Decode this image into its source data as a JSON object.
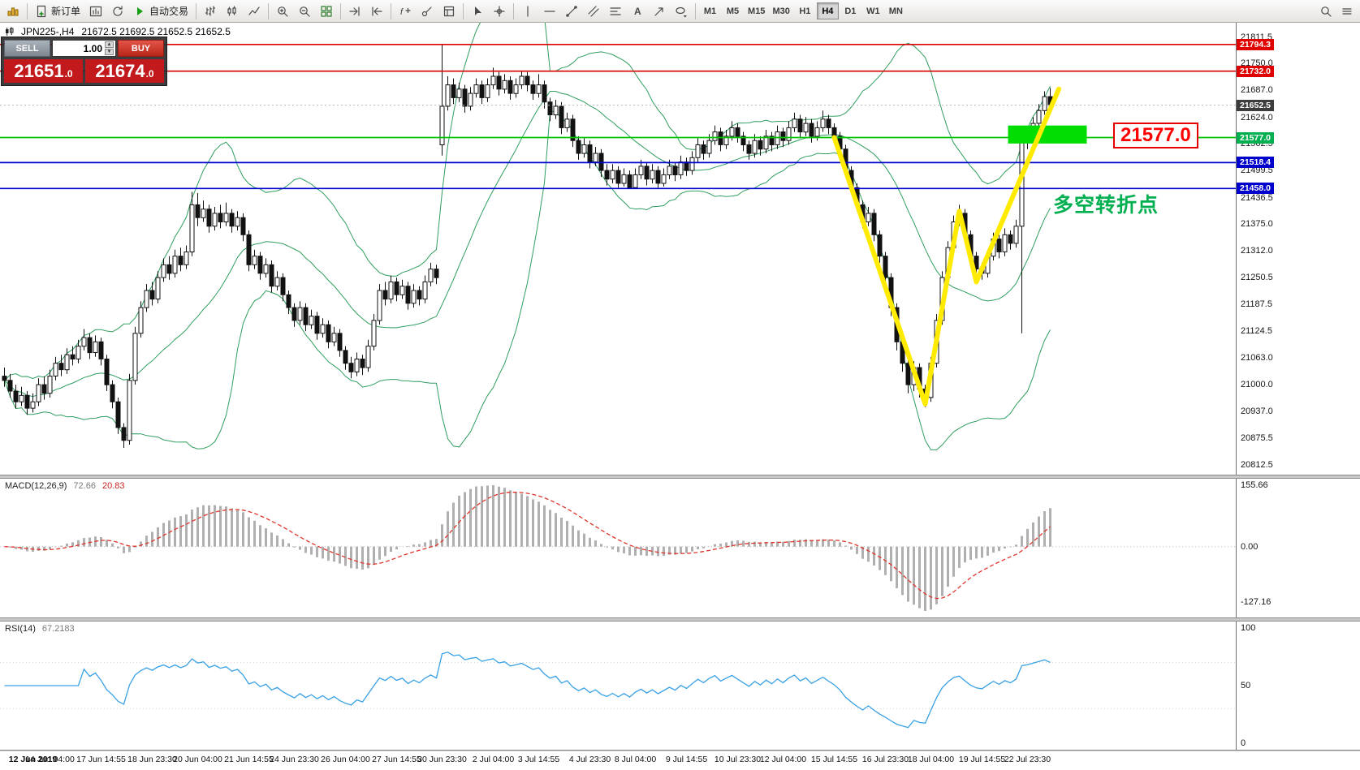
{
  "toolbar": {
    "new_order_label": "新订单",
    "autotrade_label": "自动交易",
    "timeframes": [
      "M1",
      "M5",
      "M15",
      "M30",
      "H1",
      "H4",
      "D1",
      "W1",
      "MN"
    ],
    "active_timeframe": "H4"
  },
  "chart": {
    "symbol_period": "JPN225-,H4",
    "ohlc": "21672.5 21692.5 21652.5 21652.5"
  },
  "trade_panel": {
    "sell_label": "SELL",
    "buy_label": "BUY",
    "volume": "1.00",
    "sell_price_main": "21651",
    "sell_price_frac": ".0",
    "buy_price_main": "21674",
    "buy_price_frac": ".0"
  },
  "annotations": {
    "support_price": "21577.0",
    "turning_point": "多空转折点"
  },
  "chart_data": {
    "type": "candlestick",
    "symbol": "JPN225-",
    "timeframe": "H4",
    "current_ohlc": {
      "open": 21672.5,
      "high": 21692.5,
      "low": 21652.5,
      "close": 21652.5
    },
    "current_price": 21652.5,
    "price_axis": {
      "range": [
        20790,
        21845
      ],
      "ticks": [
        21811.5,
        21750.0,
        21687.0,
        21624.0,
        21562.5,
        21499.5,
        21436.5,
        21375.0,
        21312.0,
        21250.5,
        21187.5,
        21124.5,
        21063.0,
        21000.0,
        20937.0,
        20875.5,
        20812.5
      ]
    },
    "axis_tags": [
      {
        "price": 21794.3,
        "label": "21794.3",
        "color": "#e00000"
      },
      {
        "price": 21732.0,
        "label": "21732.0",
        "color": "#e00000"
      },
      {
        "price": 21652.5,
        "label": "21652.5",
        "color": "#3c3c3c"
      },
      {
        "price": 21577.0,
        "label": "21577.0",
        "color": "#00b050"
      },
      {
        "price": 21518.4,
        "label": "21518.4",
        "color": "#0000cd"
      },
      {
        "price": 21458.0,
        "label": "21458.0",
        "color": "#0000cd"
      }
    ],
    "hlines": [
      {
        "price": 21794.3,
        "color": "#d90000"
      },
      {
        "price": 21732.0,
        "color": "#d90000"
      },
      {
        "price": 21577.0,
        "color": "#00c400"
      },
      {
        "price": 21518.4,
        "color": "#0000cd"
      },
      {
        "price": 21458.0,
        "color": "#0000cd"
      }
    ],
    "bollinger": {
      "period": 20,
      "deviation": 2,
      "color": "#2f9e5f"
    },
    "macd": {
      "label": "MACD(12,26,9)",
      "value_main": "72.66",
      "value_signal": "20.83",
      "fast": 12,
      "slow": 26,
      "signal_period": 9,
      "axis": [
        155.66,
        0,
        -127.16
      ],
      "bar_color": "#b0b0b0",
      "signal_color": "#e0352b"
    },
    "rsi": {
      "label": "RSI(14)",
      "value": "67.2183",
      "period": 14,
      "axis": [
        100,
        50,
        0
      ],
      "line_color": "#38a1e5",
      "levels": [
        70,
        30
      ]
    },
    "drawings": {
      "zigzag": {
        "color": "#ffeb00",
        "points": [
          [
            146,
            21577
          ],
          [
            162,
            20955
          ],
          [
            168,
            21405
          ],
          [
            171,
            21240
          ],
          [
            185.5,
            21690
          ]
        ]
      },
      "highlight_rect": {
        "from_index": 177,
        "to_index": 190,
        "price_top": 21605,
        "price_bottom": 21563,
        "color": "#00dd00"
      }
    },
    "candle_colors": {
      "bull": "#ffffff",
      "bear": "#111111",
      "outline": "#111111"
    },
    "time_labels": [
      {
        "i": 5,
        "t": "12 Jun 2019"
      },
      {
        "i": 8,
        "t": "14 Jun 04:00"
      },
      {
        "i": 17,
        "t": "17 Jun 14:55"
      },
      {
        "i": 26,
        "t": "18 Jun 23:30"
      },
      {
        "i": 34,
        "t": "20 Jun 04:00"
      },
      {
        "i": 43,
        "t": "21 Jun 14:55"
      },
      {
        "i": 51,
        "t": "24 Jun 23:30"
      },
      {
        "i": 60,
        "t": "26 Jun 04:00"
      },
      {
        "i": 69,
        "t": "27 Jun 14:55"
      },
      {
        "i": 77,
        "t": "30 Jun 23:30"
      },
      {
        "i": 86,
        "t": "2 Jul 04:00"
      },
      {
        "i": 94,
        "t": "3 Jul 14:55"
      },
      {
        "i": 103,
        "t": "4 Jul 23:30"
      },
      {
        "i": 111,
        "t": "8 Jul 04:00"
      },
      {
        "i": 120,
        "t": "9 Jul 14:55"
      },
      {
        "i": 129,
        "t": "10 Jul 23:30"
      },
      {
        "i": 137,
        "t": "12 Jul 04:00"
      },
      {
        "i": 146,
        "t": "15 Jul 14:55"
      },
      {
        "i": 155,
        "t": "16 Jul 23:30"
      },
      {
        "i": 163,
        "t": "18 Jul 04:00"
      },
      {
        "i": 172,
        "t": "19 Jul 14:55"
      },
      {
        "i": 180,
        "t": "22 Jul 23:30"
      }
    ],
    "candles": [
      [
        21020,
        21040,
        20995,
        21010
      ],
      [
        21010,
        21025,
        20970,
        20985
      ],
      [
        20985,
        21000,
        20945,
        20960
      ],
      [
        20960,
        20995,
        20950,
        20975
      ],
      [
        20975,
        20985,
        20930,
        20945
      ],
      [
        20945,
        20980,
        20935,
        20960
      ],
      [
        20960,
        21015,
        20950,
        21000
      ],
      [
        21000,
        21020,
        20965,
        20980
      ],
      [
        20980,
        21035,
        20970,
        21020
      ],
      [
        21020,
        21065,
        21010,
        21050
      ],
      [
        21050,
        21070,
        21020,
        21035
      ],
      [
        21035,
        21085,
        21025,
        21070
      ],
      [
        21070,
        21090,
        21045,
        21060
      ],
      [
        21060,
        21105,
        21050,
        21090
      ],
      [
        21090,
        21130,
        21080,
        21110
      ],
      [
        21110,
        21120,
        21060,
        21075
      ],
      [
        21075,
        21115,
        21065,
        21100
      ],
      [
        21100,
        21110,
        21045,
        21060
      ],
      [
        21060,
        21070,
        20985,
        21000
      ],
      [
        21000,
        21010,
        20945,
        20960
      ],
      [
        20960,
        20970,
        20885,
        20900
      ],
      [
        20900,
        20910,
        20852.5,
        20870
      ],
      [
        20870,
        21025,
        20860,
        21010
      ],
      [
        21010,
        21135,
        21000,
        21120
      ],
      [
        21120,
        21195,
        21110,
        21180
      ],
      [
        21180,
        21235,
        21170,
        21220
      ],
      [
        21220,
        21240,
        21185,
        21200
      ],
      [
        21200,
        21265,
        21190,
        21250
      ],
      [
        21250,
        21295,
        21240,
        21280
      ],
      [
        21280,
        21300,
        21245,
        21260
      ],
      [
        21260,
        21315,
        21250,
        21300
      ],
      [
        21300,
        21320,
        21265,
        21280
      ],
      [
        21280,
        21325,
        21270,
        21310
      ],
      [
        21310,
        21450,
        21300,
        21420
      ],
      [
        21420,
        21447.5,
        21370,
        21390
      ],
      [
        21390,
        21430,
        21380,
        21410
      ],
      [
        21410,
        21420,
        21355,
        21370
      ],
      [
        21370,
        21415,
        21360,
        21400
      ],
      [
        21400,
        21420,
        21365,
        21380
      ],
      [
        21380,
        21425,
        21370,
        21400
      ],
      [
        21400,
        21410,
        21355,
        21370
      ],
      [
        21370,
        21405,
        21360,
        21390
      ],
      [
        21390,
        21400,
        21335,
        21350
      ],
      [
        21350,
        21360,
        21265,
        21280
      ],
      [
        21280,
        21315,
        21270,
        21300
      ],
      [
        21300,
        21310,
        21245,
        21260
      ],
      [
        21260,
        21295,
        21250,
        21280
      ],
      [
        21280,
        21290,
        21215,
        21230
      ],
      [
        21230,
        21265,
        21220,
        21250
      ],
      [
        21250,
        21260,
        21195,
        21210
      ],
      [
        21210,
        21220,
        21165,
        21180
      ],
      [
        21180,
        21190,
        21135,
        21150
      ],
      [
        21150,
        21195,
        21140,
        21180
      ],
      [
        21180,
        21190,
        21125,
        21140
      ],
      [
        21140,
        21175,
        21130,
        21160
      ],
      [
        21160,
        21170,
        21105,
        21120
      ],
      [
        21120,
        21155,
        21110,
        21140
      ],
      [
        21140,
        21150,
        21085,
        21100
      ],
      [
        21100,
        21135,
        21090,
        21120
      ],
      [
        21120,
        21130,
        21065,
        21080
      ],
      [
        21080,
        21090,
        21035,
        21050
      ],
      [
        21050,
        21065,
        21015,
        21030
      ],
      [
        21030,
        21075,
        21020,
        21060
      ],
      [
        21060,
        21070,
        21022.5,
        21040
      ],
      [
        21040,
        21105,
        21030,
        21090
      ],
      [
        21090,
        21165,
        21080,
        21150
      ],
      [
        21150,
        21235,
        21140,
        21220
      ],
      [
        21220,
        21240,
        21185,
        21200
      ],
      [
        21200,
        21255,
        21190,
        21240
      ],
      [
        21240,
        21250,
        21195,
        21210
      ],
      [
        21210,
        21245,
        21200,
        21230
      ],
      [
        21230,
        21240,
        21175,
        21190
      ],
      [
        21190,
        21235,
        21180,
        21220
      ],
      [
        21220,
        21230,
        21185,
        21200
      ],
      [
        21200,
        21255,
        21190,
        21240
      ],
      [
        21240,
        21285,
        21230,
        21270
      ],
      [
        21270,
        21280,
        21235,
        21250
      ],
      [
        21560,
        21794.3,
        21535,
        21650
      ],
      [
        21650,
        21720,
        21640,
        21700
      ],
      [
        21700,
        21715,
        21655,
        21670
      ],
      [
        21670,
        21705,
        21660,
        21690
      ],
      [
        21690,
        21700,
        21635,
        21650
      ],
      [
        21650,
        21695,
        21640,
        21680
      ],
      [
        21680,
        21715,
        21670,
        21700
      ],
      [
        21700,
        21710,
        21655,
        21670
      ],
      [
        21670,
        21715,
        21660,
        21700
      ],
      [
        21700,
        21740,
        21690,
        21720
      ],
      [
        21720,
        21730,
        21675,
        21690
      ],
      [
        21690,
        21725,
        21680,
        21710
      ],
      [
        21710,
        21720,
        21665,
        21680
      ],
      [
        21680,
        21715,
        21670,
        21700
      ],
      [
        21700,
        21732,
        21690,
        21720
      ],
      [
        21720,
        21730,
        21685,
        21700
      ],
      [
        21700,
        21710,
        21665,
        21680
      ],
      [
        21680,
        21725,
        21670,
        21700
      ],
      [
        21700,
        21710,
        21645,
        21660
      ],
      [
        21660,
        21670,
        21615,
        21630
      ],
      [
        21630,
        21665,
        21620,
        21650
      ],
      [
        21650,
        21660,
        21585,
        21600
      ],
      [
        21600,
        21635,
        21590,
        21620
      ],
      [
        21620,
        21630,
        21555,
        21570
      ],
      [
        21570,
        21580,
        21525,
        21540
      ],
      [
        21540,
        21575,
        21530,
        21560
      ],
      [
        21560,
        21570,
        21505,
        21520
      ],
      [
        21520,
        21555,
        21510,
        21540
      ],
      [
        21540,
        21550,
        21485,
        21500
      ],
      [
        21500,
        21515,
        21465,
        21480
      ],
      [
        21480,
        21515,
        21470,
        21500
      ],
      [
        21500,
        21510,
        21460,
        21470
      ],
      [
        21470,
        21505,
        21462.5,
        21490
      ],
      [
        21490,
        21500,
        21458,
        21460
      ],
      [
        21460,
        21505,
        21458,
        21490
      ],
      [
        21490,
        21525,
        21480,
        21510
      ],
      [
        21510,
        21520,
        21465,
        21480
      ],
      [
        21480,
        21515,
        21470,
        21500
      ],
      [
        21500,
        21510,
        21460,
        21470
      ],
      [
        21470,
        21505,
        21462.5,
        21490
      ],
      [
        21490,
        21525,
        21480,
        21510
      ],
      [
        21510,
        21520,
        21475,
        21490
      ],
      [
        21490,
        21535,
        21480,
        21520
      ],
      [
        21520,
        21530,
        21487.5,
        21500
      ],
      [
        21500,
        21545,
        21490,
        21530
      ],
      [
        21530,
        21575,
        21520,
        21560
      ],
      [
        21560,
        21570,
        21525,
        21540
      ],
      [
        21540,
        21585,
        21530,
        21570
      ],
      [
        21570,
        21605,
        21560,
        21590
      ],
      [
        21590,
        21600,
        21545,
        21560
      ],
      [
        21560,
        21595,
        21550,
        21580
      ],
      [
        21580,
        21615,
        21570,
        21600
      ],
      [
        21600,
        21610,
        21565,
        21580
      ],
      [
        21580,
        21590,
        21545,
        21560
      ],
      [
        21560,
        21570,
        21525,
        21540
      ],
      [
        21540,
        21585,
        21530,
        21570
      ],
      [
        21570,
        21580,
        21535,
        21550
      ],
      [
        21550,
        21595,
        21540,
        21580
      ],
      [
        21580,
        21590,
        21545,
        21560
      ],
      [
        21560,
        21605,
        21550,
        21590
      ],
      [
        21590,
        21600,
        21555,
        21570
      ],
      [
        21570,
        21615,
        21560,
        21600
      ],
      [
        21600,
        21635,
        21590,
        21620
      ],
      [
        21620,
        21630,
        21575,
        21590
      ],
      [
        21590,
        21625,
        21580,
        21610
      ],
      [
        21610,
        21620,
        21565,
        21580
      ],
      [
        21580,
        21615,
        21570,
        21600
      ],
      [
        21600,
        21640,
        21590,
        21620
      ],
      [
        21620,
        21630,
        21585,
        21600
      ],
      [
        21600,
        21610,
        21565,
        21580
      ],
      [
        21580,
        21590,
        21535,
        21550
      ],
      [
        21550,
        21560,
        21485,
        21500
      ],
      [
        21500,
        21510,
        21445,
        21460
      ],
      [
        21460,
        21470,
        21405,
        21420
      ],
      [
        21420,
        21430,
        21365,
        21380
      ],
      [
        21380,
        21415,
        21370,
        21400
      ],
      [
        21400,
        21410,
        21335,
        21350
      ],
      [
        21350,
        21360,
        21285,
        21300
      ],
      [
        21300,
        21310,
        21230,
        21250
      ],
      [
        21250,
        21260,
        21160,
        21180
      ],
      [
        21180,
        21190,
        21080,
        21100
      ],
      [
        21100,
        21115,
        21030,
        21050
      ],
      [
        21050,
        21060,
        20980,
        21000
      ],
      [
        21000,
        21055,
        20985,
        21040
      ],
      [
        21040,
        21050,
        20970,
        20990
      ],
      [
        20990,
        21000,
        20947.5,
        20970
      ],
      [
        20970,
        21065,
        20960,
        21050
      ],
      [
        21050,
        21165,
        21040,
        21150
      ],
      [
        21150,
        21265,
        21140,
        21250
      ],
      [
        21250,
        21335,
        21240,
        21320
      ],
      [
        21320,
        21395,
        21310,
        21380
      ],
      [
        21380,
        21420,
        21370,
        21400
      ],
      [
        21400,
        21410,
        21335,
        21350
      ],
      [
        21350,
        21360,
        21285,
        21300
      ],
      [
        21300,
        21310,
        21255,
        21270
      ],
      [
        21270,
        21285,
        21245,
        21260
      ],
      [
        21260,
        21315,
        21250,
        21300
      ],
      [
        21300,
        21355,
        21290,
        21340
      ],
      [
        21340,
        21350,
        21295,
        21310
      ],
      [
        21310,
        21365,
        21300,
        21350
      ],
      [
        21350,
        21360,
        21315,
        21330
      ],
      [
        21330,
        21385,
        21320,
        21370
      ],
      [
        21370,
        21580,
        21120,
        21565
      ],
      [
        21565,
        21595,
        21550,
        21580
      ],
      [
        21580,
        21625,
        21570,
        21610
      ],
      [
        21610,
        21655,
        21600,
        21640
      ],
      [
        21640,
        21685,
        21630,
        21672.5
      ],
      [
        21672.5,
        21692.5,
        21652.5,
        21652.5
      ]
    ]
  }
}
